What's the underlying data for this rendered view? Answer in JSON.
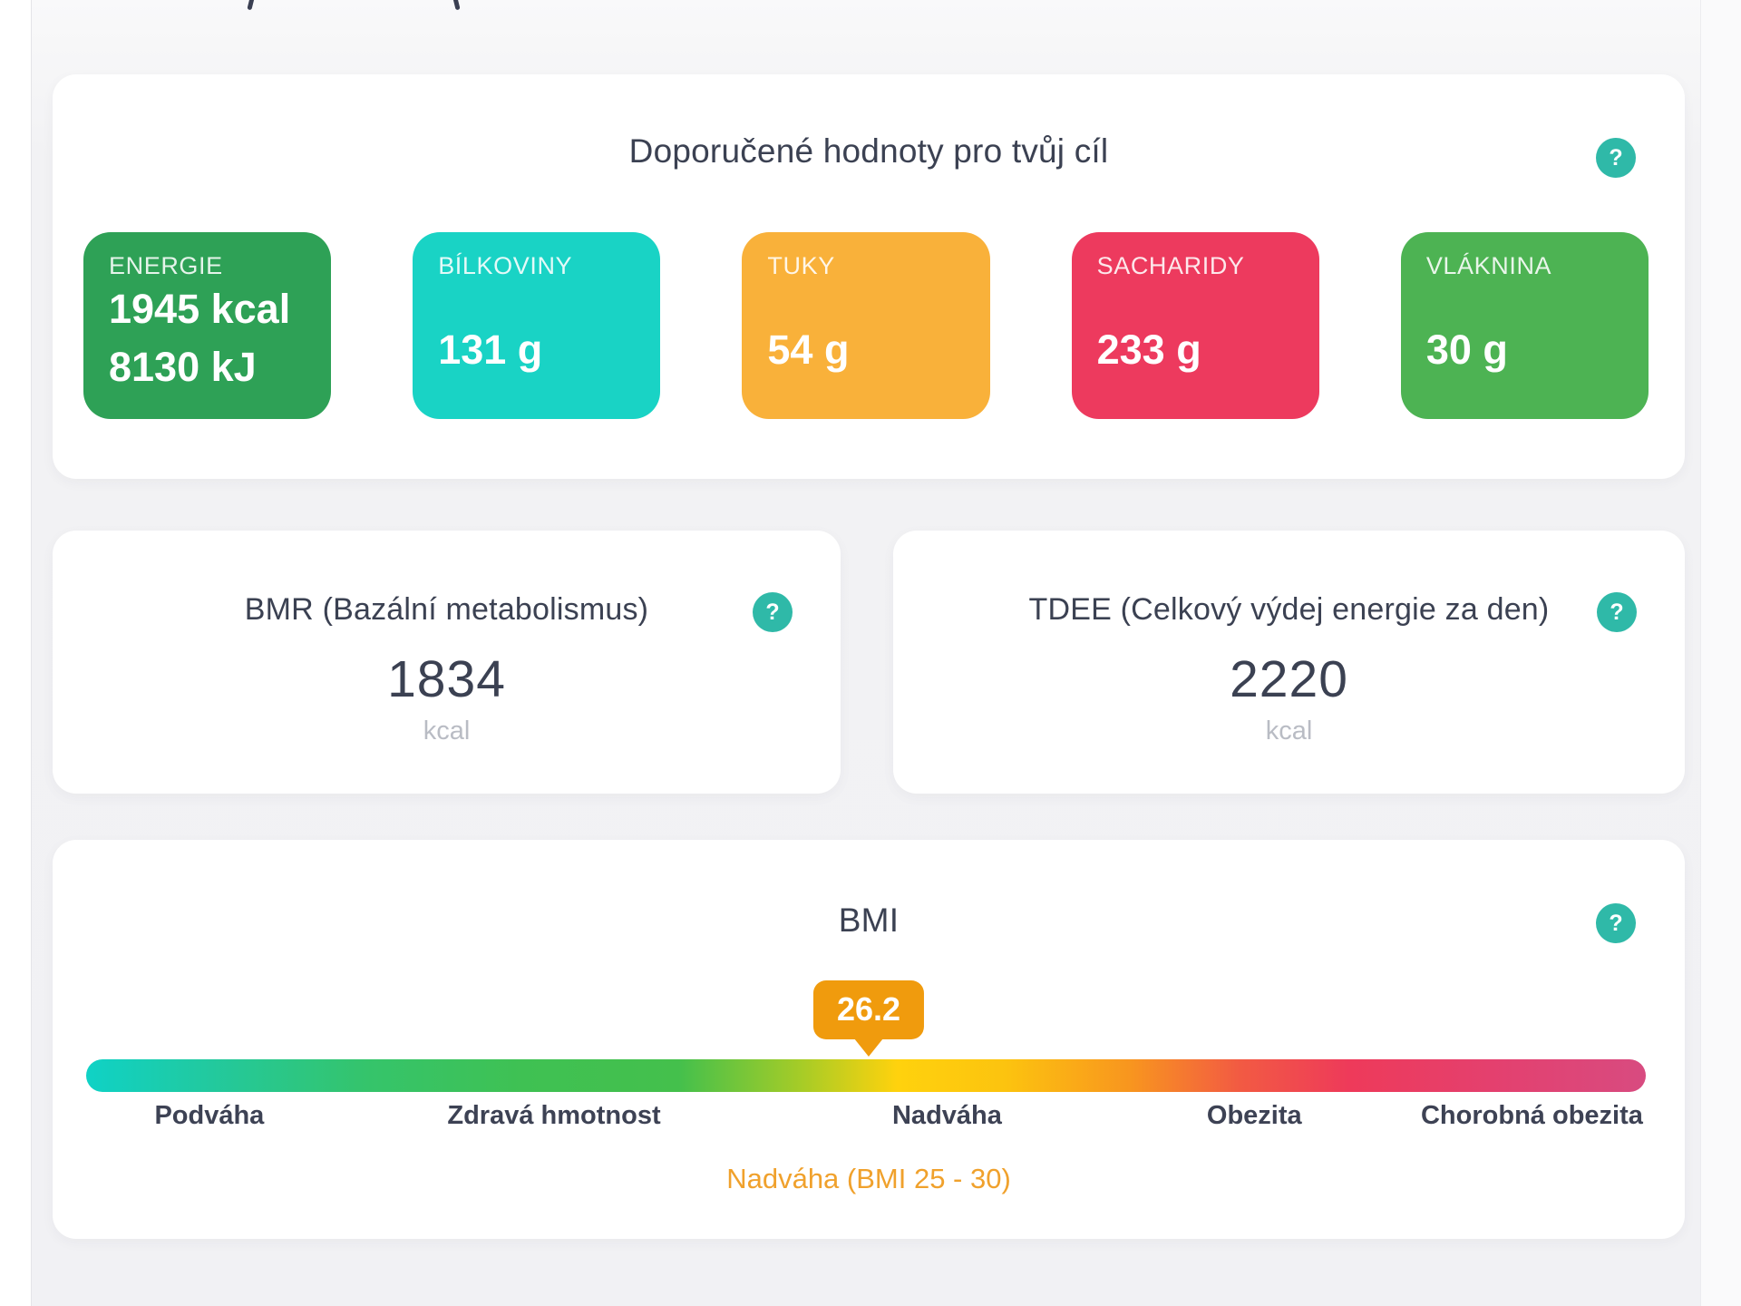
{
  "recommended": {
    "title": "Doporučené hodnoty pro tvůj cíl",
    "help_icon": "?",
    "tiles": [
      {
        "label": "ENERGIE",
        "value": "1945 kcal",
        "value2": "8130 kJ",
        "color": "#2ea156"
      },
      {
        "label": "BÍLKOVINY",
        "value": "131 g",
        "color": "#19d3c5"
      },
      {
        "label": "TUKY",
        "value": "54 g",
        "color": "#f9b13a"
      },
      {
        "label": "SACHARIDY",
        "value": "233 g",
        "color": "#ed3a5e"
      },
      {
        "label": "VLÁKNINA",
        "value": "30 g",
        "color": "#4db353"
      }
    ]
  },
  "bmr": {
    "title": "BMR (Bazální metabolismus)",
    "value": "1834",
    "unit": "kcal",
    "help_icon": "?"
  },
  "tdee": {
    "title": "TDEE (Celkový výdej energie za den)",
    "value": "2220",
    "unit": "kcal",
    "help_icon": "?"
  },
  "bmi": {
    "title": "BMI",
    "value": "26.2",
    "marker_position_pct": 50,
    "scale_labels": [
      "Podváha",
      "Zdravá hmotnost",
      "Nadváha",
      "Obezita",
      "Chorobná obezita"
    ],
    "status": "Nadváha (BMI 25 - 30)",
    "help_icon": "?",
    "colors": {
      "badge": "#f09b0d",
      "status_text": "#f0a12c",
      "help_button": "#2fb9a8",
      "scale_gradient": [
        "#0fd2c6",
        "#35c46b",
        "#44c04c",
        "#ffd20d",
        "#f8951f",
        "#ee3a5a",
        "#d84b80"
      ]
    }
  }
}
